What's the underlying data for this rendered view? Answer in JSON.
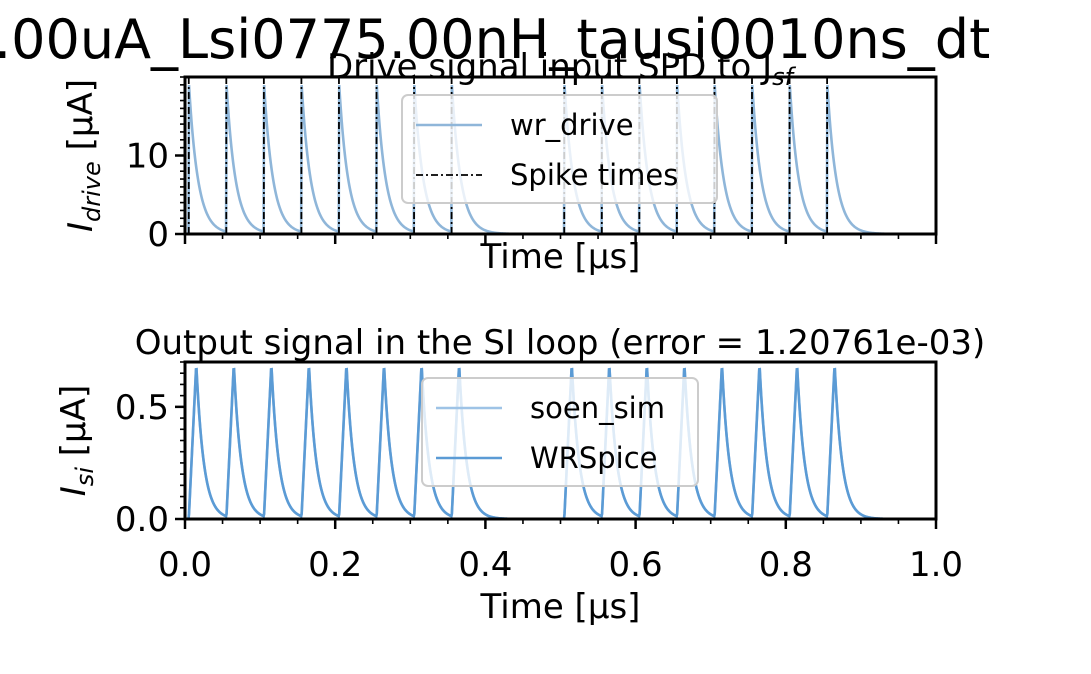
{
  "figure": {
    "suptitle": ".00uA_Lsi0775.00nH_tausi0010ns_dt"
  },
  "chart_data": [
    {
      "type": "line",
      "title": "Drive signal input SPD to J",
      "title_subscript": "sf",
      "xlabel": "Time [μs]",
      "ylabel": "I",
      "ylabel_subscript": "drive",
      "ylabel_unit": " [μA]",
      "xlim": [
        0,
        1.0
      ],
      "ylim": [
        0,
        20
      ],
      "yticks": [
        0,
        10
      ],
      "ytick_labels": [
        "0",
        "10"
      ],
      "xticks": [
        0,
        0.2,
        0.4,
        0.6,
        0.8,
        1.0
      ],
      "show_xtick_labels": false,
      "legend": {
        "placement": "upper-center",
        "entries": [
          "wr_drive",
          "Spike times"
        ]
      },
      "series": [
        {
          "name": "wr_drive",
          "color": "#8fb6d9",
          "style": "solid",
          "pulse_peak": 19.5,
          "decay_tau_us": 0.012,
          "pulse_times": [
            0.005,
            0.055,
            0.105,
            0.155,
            0.205,
            0.255,
            0.305,
            0.355,
            0.505,
            0.555,
            0.605,
            0.655,
            0.705,
            0.755,
            0.805,
            0.855
          ]
        },
        {
          "name": "Spike times",
          "color": "#000000",
          "style": "dashdot",
          "x": [
            0.005,
            0.055,
            0.105,
            0.155,
            0.205,
            0.255,
            0.305,
            0.355,
            0.505,
            0.555,
            0.605,
            0.655,
            0.705,
            0.755,
            0.805,
            0.855
          ]
        }
      ]
    },
    {
      "type": "line",
      "title": "Output signal in the SI loop (error = 1.20761e-03)",
      "xlabel": "Time [μs]",
      "ylabel": "I",
      "ylabel_subscript": "si",
      "ylabel_unit": " [μA]",
      "xlim": [
        0,
        1.0
      ],
      "ylim": [
        0,
        0.7
      ],
      "yticks": [
        0.0,
        0.5
      ],
      "ytick_labels": [
        "0.0",
        "0.5"
      ],
      "xticks": [
        0,
        0.2,
        0.4,
        0.6,
        0.8,
        1.0
      ],
      "xtick_labels": [
        "0.0",
        "0.2",
        "0.4",
        "0.6",
        "0.8",
        "1.0"
      ],
      "show_xtick_labels": true,
      "legend": {
        "placement": "upper-center",
        "entries": [
          "soen_sim",
          "WRSpice"
        ]
      },
      "series": [
        {
          "name": "soen_sim",
          "color": "#9ec3e6",
          "style": "solid",
          "pulse_peak": 0.69,
          "rise_us": 0.01,
          "decay_tau_us": 0.01,
          "pulse_times": [
            0.005,
            0.055,
            0.105,
            0.155,
            0.205,
            0.255,
            0.305,
            0.355,
            0.505,
            0.555,
            0.605,
            0.655,
            0.705,
            0.755,
            0.805,
            0.855
          ]
        },
        {
          "name": "WRSpice",
          "color": "#5b9bd5",
          "style": "solid",
          "pulse_peak": 0.69,
          "rise_us": 0.01,
          "decay_tau_us": 0.01,
          "pulse_times": [
            0.005,
            0.055,
            0.105,
            0.155,
            0.205,
            0.255,
            0.305,
            0.355,
            0.505,
            0.555,
            0.605,
            0.655,
            0.705,
            0.755,
            0.805,
            0.855
          ]
        }
      ]
    }
  ]
}
